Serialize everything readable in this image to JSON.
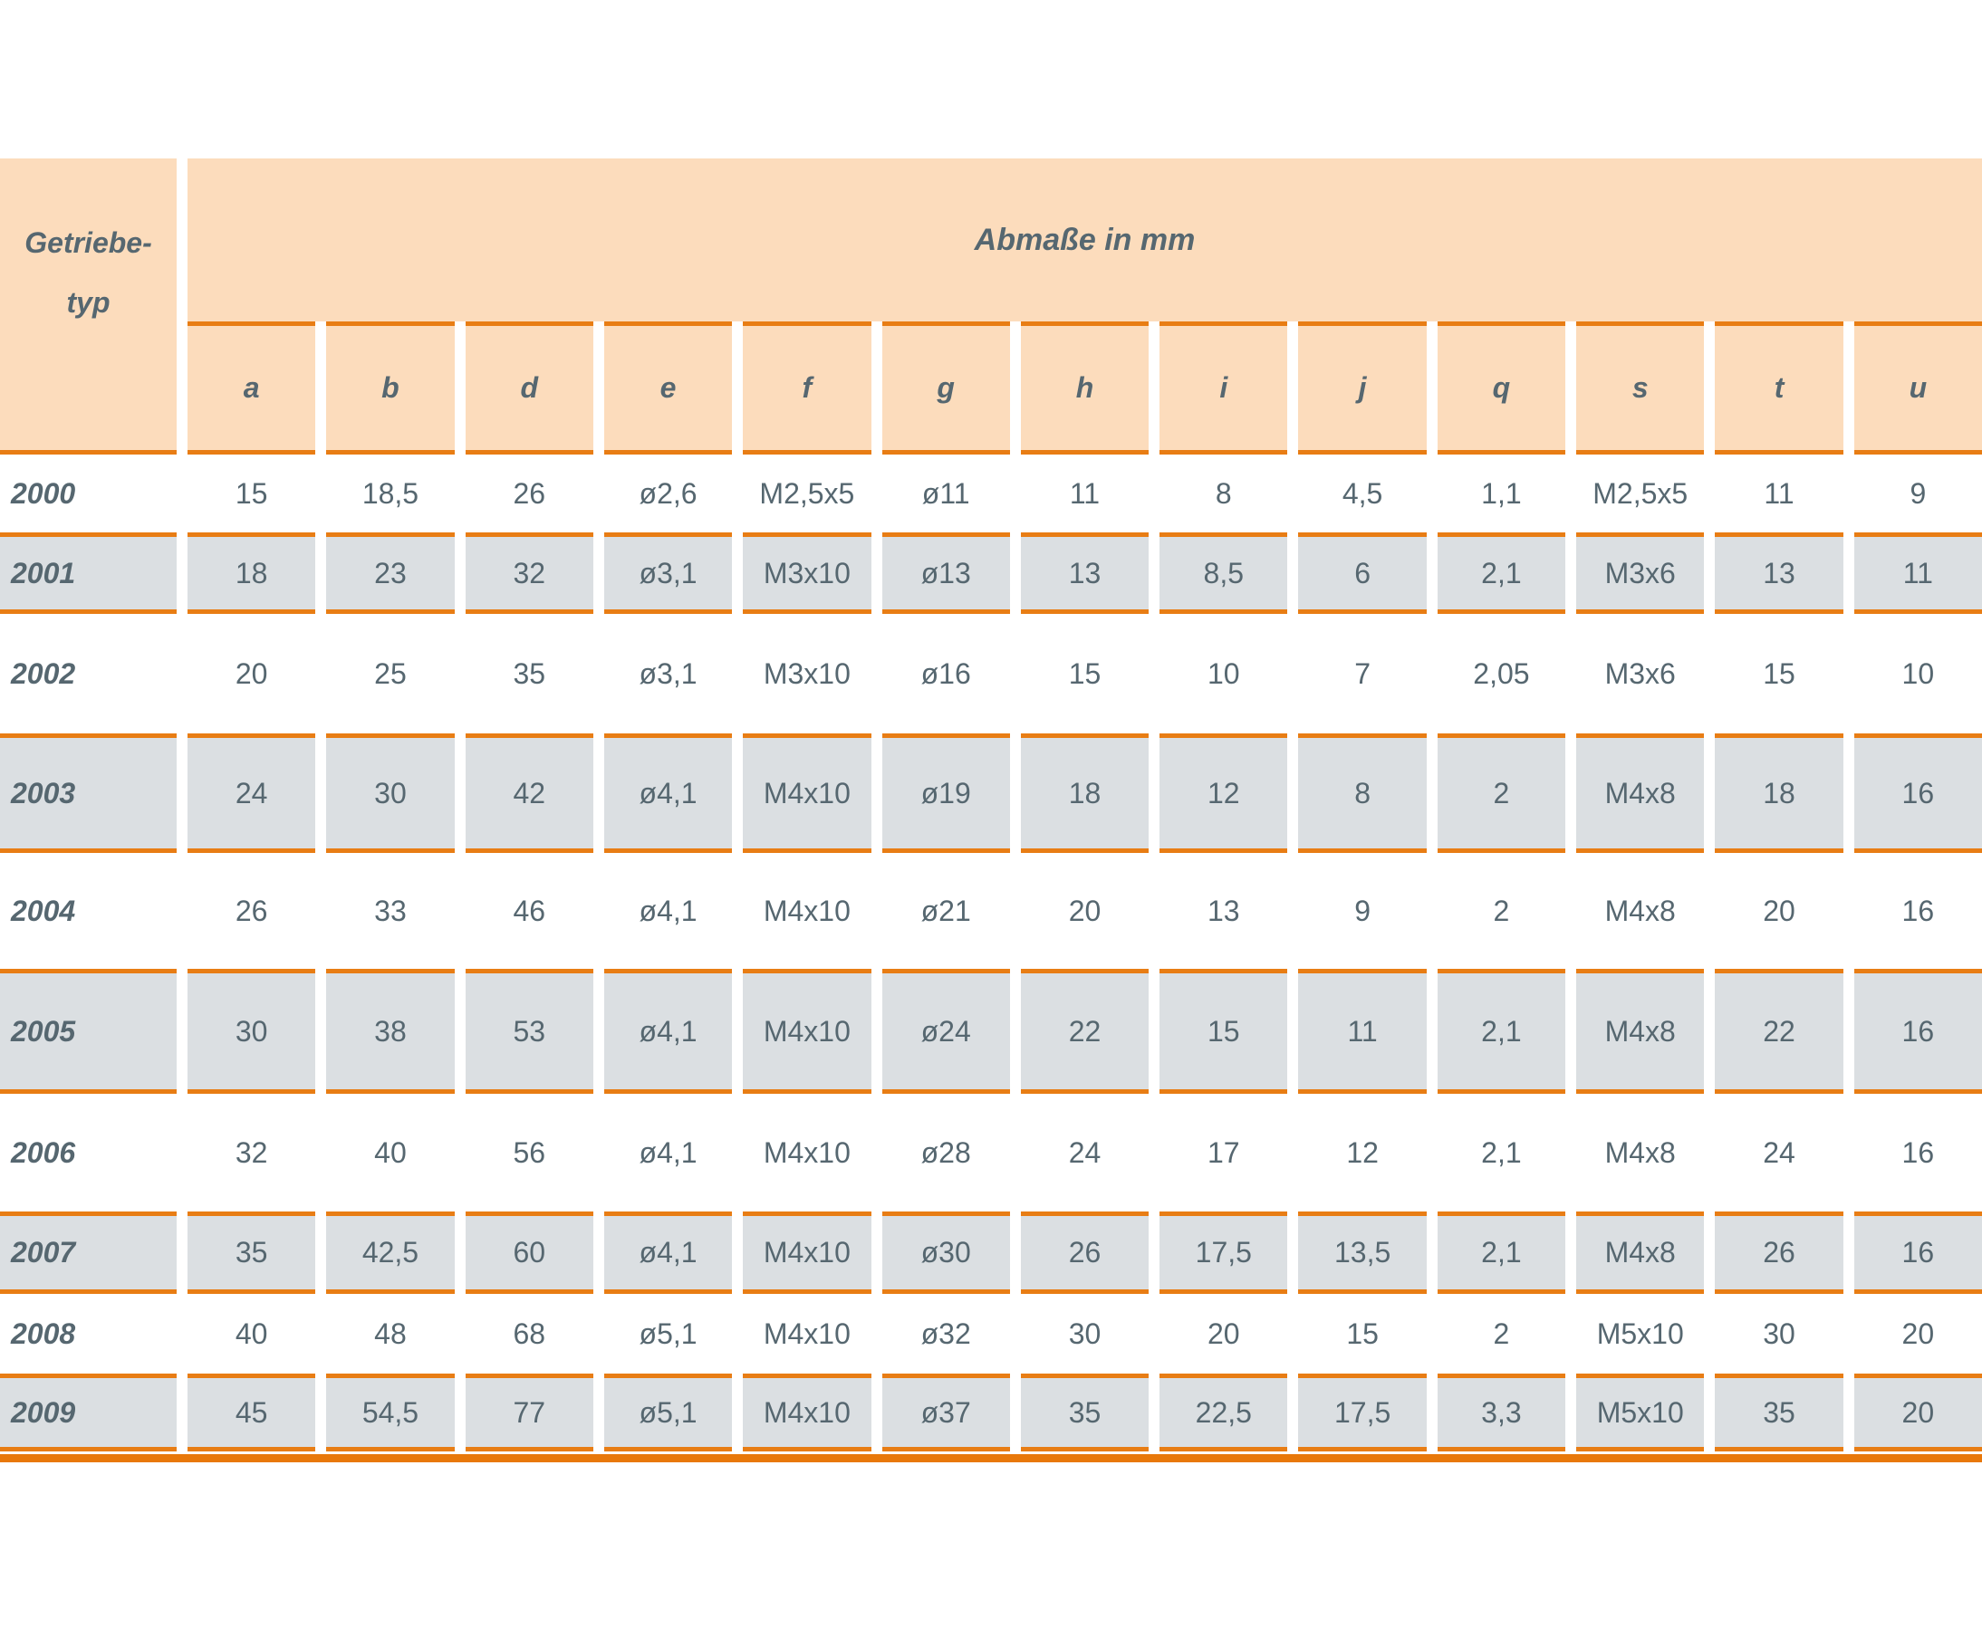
{
  "table": {
    "type_column_header": {
      "line1": "Getriebe-",
      "line2": "typ"
    },
    "group_header": "Abmaße in mm",
    "columns": [
      "a",
      "b",
      "d",
      "e",
      "f",
      "g",
      "h",
      "i",
      "j",
      "q",
      "s",
      "t",
      "u"
    ],
    "rows": [
      {
        "type": "2000",
        "values": [
          "15",
          "18,5",
          "26",
          "ø2,6",
          "M2,5x5",
          "ø11",
          "11",
          "8",
          "4,5",
          "1,1",
          "M2,5x5",
          "11",
          "9"
        ]
      },
      {
        "type": "2001",
        "values": [
          "18",
          "23",
          "32",
          "ø3,1",
          "M3x10",
          "ø13",
          "13",
          "8,5",
          "6",
          "2,1",
          "M3x6",
          "13",
          "11"
        ]
      },
      {
        "type": "2002",
        "values": [
          "20",
          "25",
          "35",
          "ø3,1",
          "M3x10",
          "ø16",
          "15",
          "10",
          "7",
          "2,05",
          "M3x6",
          "15",
          "10"
        ]
      },
      {
        "type": "2003",
        "values": [
          "24",
          "30",
          "42",
          "ø4,1",
          "M4x10",
          "ø19",
          "18",
          "12",
          "8",
          "2",
          "M4x8",
          "18",
          "16"
        ]
      },
      {
        "type": "2004",
        "values": [
          "26",
          "33",
          "46",
          "ø4,1",
          "M4x10",
          "ø21",
          "20",
          "13",
          "9",
          "2",
          "M4x8",
          "20",
          "16"
        ]
      },
      {
        "type": "2005",
        "values": [
          "30",
          "38",
          "53",
          "ø4,1",
          "M4x10",
          "ø24",
          "22",
          "15",
          "11",
          "2,1",
          "M4x8",
          "22",
          "16"
        ]
      },
      {
        "type": "2006",
        "values": [
          "32",
          "40",
          "56",
          "ø4,1",
          "M4x10",
          "ø28",
          "24",
          "17",
          "12",
          "2,1",
          "M4x8",
          "24",
          "16"
        ]
      },
      {
        "type": "2007",
        "values": [
          "35",
          "42,5",
          "60",
          "ø4,1",
          "M4x10",
          "ø30",
          "26",
          "17,5",
          "13,5",
          "2,1",
          "M4x8",
          "26",
          "16"
        ]
      },
      {
        "type": "2008",
        "values": [
          "40",
          "48",
          "68",
          "ø5,1",
          "M4x10",
          "ø32",
          "30",
          "20",
          "15",
          "2",
          "M5x10",
          "30",
          "20"
        ]
      },
      {
        "type": "2009",
        "values": [
          "45",
          "54,5",
          "77",
          "ø5,1",
          "M4x10",
          "ø37",
          "35",
          "22,5",
          "17,5",
          "3,3",
          "M5x10",
          "35",
          "20"
        ]
      }
    ]
  },
  "colors": {
    "header_background": "#fcdcbc",
    "shaded_row_background": "#dbdfe2",
    "rule_orange": "#e87d14",
    "bottom_rule_orange": "#e8780a",
    "text": "#566770"
  }
}
